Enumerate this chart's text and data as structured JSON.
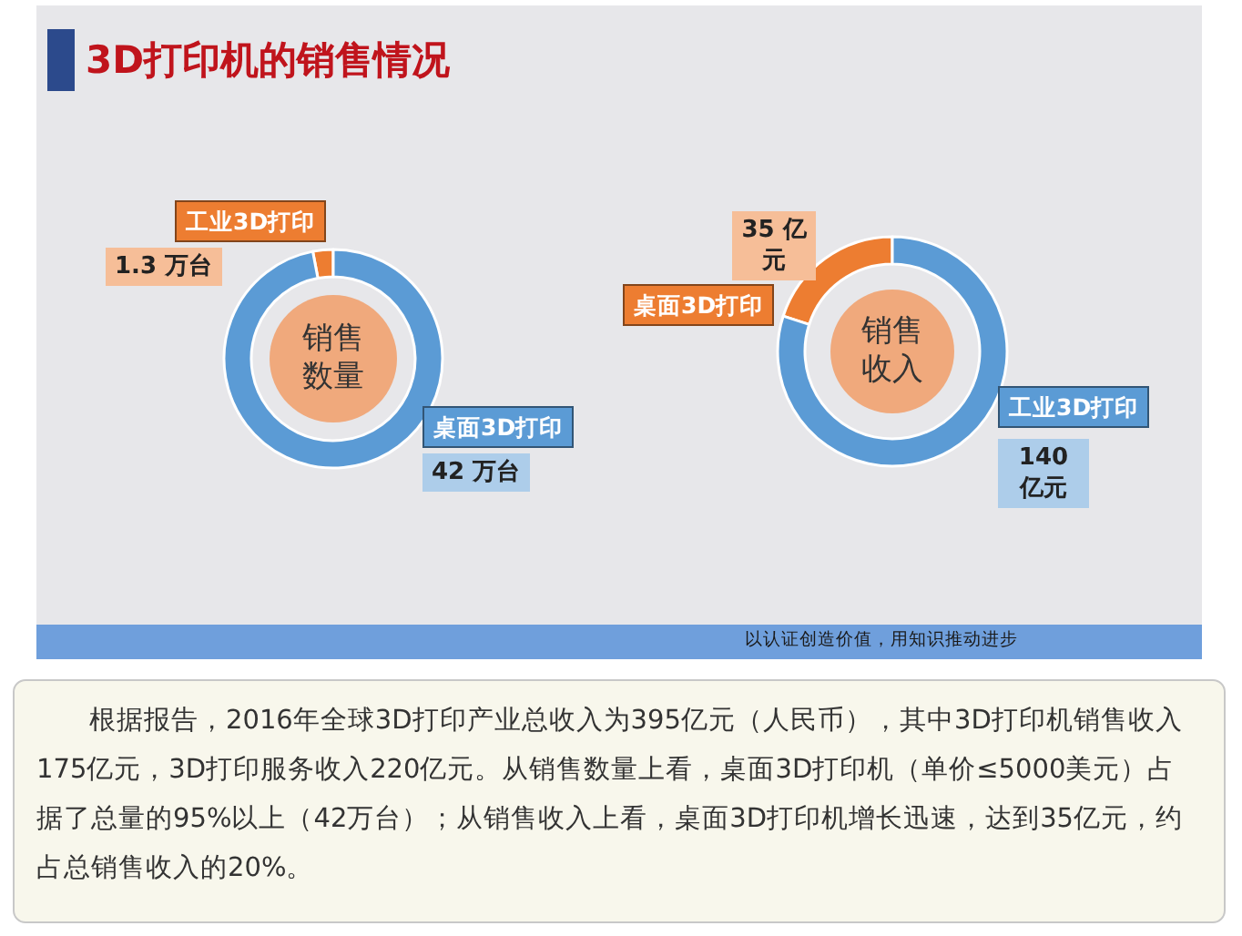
{
  "chart_data": [
    {
      "type": "donut",
      "title": "3D打印机的销售情况",
      "annotations": [
        "销售数量"
      ],
      "categories": [
        "工业3D打印",
        "桌面3D打印"
      ],
      "values": [
        1.3,
        42
      ],
      "value_labels": [
        "1.3 万台",
        "42 万台"
      ],
      "colors": [
        "#ed7d31",
        "#5b9bd5"
      ]
    },
    {
      "type": "donut",
      "annotations": [
        "销售收入"
      ],
      "categories": [
        "桌面3D打印",
        "工业3D打印"
      ],
      "values": [
        35,
        140
      ],
      "value_labels": [
        "35 亿元",
        "140亿元"
      ],
      "colors": [
        "#ed7d31",
        "#5b9bd5"
      ]
    },
    {
      "type": "other",
      "annotations": [
        "以认证创造价值，用知识推动进步",
        "根据报告，2016年全球3D打印产业总收入为395亿元（人民币），其中3D打印机销售收入175亿元，3D打印服务收入220亿元。从销售数量上看，桌面3D打印机（单价≤5000美元）占据了总量的95%以上（42万台）；从销售收入上看，桌面3D打印机增长迅速，达到35亿元，约占总销售收入的20%。"
      ]
    }
  ]
}
